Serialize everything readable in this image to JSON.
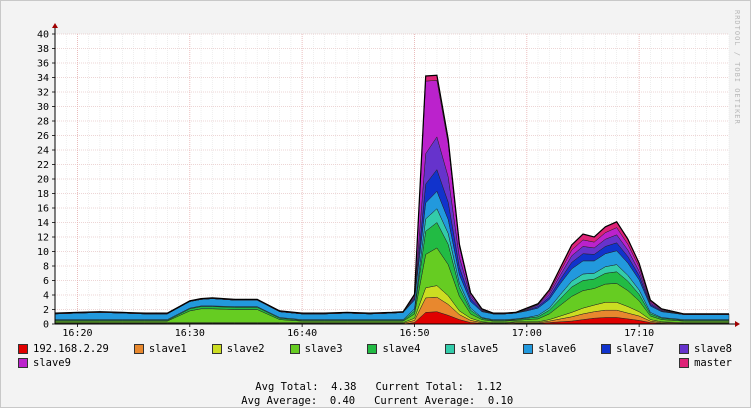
{
  "chart_data": {
    "type": "area",
    "stacked": true,
    "ylim": [
      0,
      40
    ],
    "yticks": [
      "0",
      "2",
      "4",
      "6",
      "8",
      "10",
      "12",
      "14",
      "16",
      "18",
      "20",
      "22",
      "24",
      "26",
      "28",
      "30",
      "32",
      "34",
      "36",
      "38",
      "40"
    ],
    "xticks": [
      "16:20",
      "16:30",
      "16:40",
      "16:50",
      "17:00",
      "17:10"
    ],
    "side_text": "RRDTOOL / TOBI OETIKER",
    "grid": true,
    "x": [
      "16:18",
      "16:20",
      "16:22",
      "16:24",
      "16:26",
      "16:28",
      "16:30",
      "16:31",
      "16:32",
      "16:34",
      "16:36",
      "16:38",
      "16:40",
      "16:42",
      "16:44",
      "16:46",
      "16:48",
      "16:49",
      "16:50",
      "16:51",
      "16:52",
      "16:53",
      "16:54",
      "16:55",
      "16:56",
      "16:57",
      "16:58",
      "16:59",
      "17:00",
      "17:01",
      "17:02",
      "17:03",
      "17:04",
      "17:05",
      "17:06",
      "17:07",
      "17:08",
      "17:09",
      "17:10",
      "17:11",
      "17:12",
      "17:14",
      "17:16",
      "17:18"
    ],
    "series": [
      {
        "name": "192.168.2.29",
        "color": "#e00000",
        "values": [
          0,
          0,
          0,
          0,
          0,
          0,
          0,
          0,
          0,
          0,
          0,
          0,
          0,
          0,
          0,
          0,
          0,
          0,
          0.2,
          1.6,
          1.7,
          1.2,
          0.6,
          0.2,
          0.1,
          0,
          0,
          0.1,
          0.1,
          0.1,
          0.2,
          0.3,
          0.4,
          0.6,
          0.8,
          0.9,
          0.9,
          0.7,
          0.5,
          0.2,
          0.1,
          0,
          0,
          0
        ]
      },
      {
        "name": "slave1",
        "color": "#e8882e",
        "values": [
          0.1,
          0.1,
          0.1,
          0.1,
          0.1,
          0.1,
          0.1,
          0.1,
          0.1,
          0.1,
          0.1,
          0.1,
          0.1,
          0.1,
          0.1,
          0.1,
          0.1,
          0.1,
          0.3,
          2.0,
          2.0,
          1.5,
          0.7,
          0.3,
          0.1,
          0.1,
          0.1,
          0.1,
          0.1,
          0.1,
          0.2,
          0.4,
          0.6,
          0.8,
          0.9,
          1.0,
          1.0,
          0.8,
          0.6,
          0.2,
          0.1,
          0.1,
          0.1,
          0.1
        ]
      },
      {
        "name": "slave2",
        "color": "#ccdd22",
        "values": [
          0.1,
          0.1,
          0.1,
          0.1,
          0.1,
          0.1,
          0.1,
          0.1,
          0.1,
          0.1,
          0.1,
          0.1,
          0.1,
          0.1,
          0.1,
          0.1,
          0.1,
          0.1,
          0.3,
          1.4,
          1.6,
          1.2,
          0.5,
          0.3,
          0.1,
          0.1,
          0.1,
          0.1,
          0.1,
          0.1,
          0.2,
          0.4,
          0.6,
          0.8,
          0.9,
          1.1,
          1.1,
          0.9,
          0.6,
          0.2,
          0.1,
          0.1,
          0.1,
          0.1
        ]
      },
      {
        "name": "slave3",
        "color": "#66cc22",
        "values": [
          0.2,
          0.2,
          0.2,
          0.2,
          0.2,
          0.2,
          1.6,
          1.9,
          1.9,
          1.8,
          1.8,
          0.4,
          0.2,
          0.2,
          0.2,
          0.2,
          0.2,
          0.2,
          0.6,
          4.6,
          5.2,
          4.3,
          2.0,
          0.6,
          0.3,
          0.2,
          0.2,
          0.2,
          0.3,
          0.4,
          0.8,
          1.5,
          2.2,
          2.4,
          2.3,
          2.5,
          2.6,
          2.2,
          1.5,
          0.5,
          0.3,
          0.2,
          0.2,
          0.2
        ]
      },
      {
        "name": "slave4",
        "color": "#22bb44",
        "values": [
          0.1,
          0.1,
          0.1,
          0.1,
          0.1,
          0.1,
          0.3,
          0.3,
          0.3,
          0.3,
          0.3,
          0.2,
          0.1,
          0.1,
          0.1,
          0.1,
          0.1,
          0.1,
          0.4,
          3.2,
          3.5,
          2.8,
          1.2,
          0.5,
          0.2,
          0.1,
          0.1,
          0.1,
          0.2,
          0.3,
          0.5,
          0.9,
          1.3,
          1.4,
          1.3,
          1.5,
          1.6,
          1.3,
          0.9,
          0.3,
          0.2,
          0.1,
          0.1,
          0.1
        ]
      },
      {
        "name": "slave5",
        "color": "#33ccaa",
        "values": [
          0.1,
          0.1,
          0.1,
          0.1,
          0.1,
          0.1,
          0.1,
          0.1,
          0.1,
          0.1,
          0.1,
          0.1,
          0.1,
          0.1,
          0.1,
          0.1,
          0.1,
          0.1,
          0.3,
          1.7,
          1.9,
          1.5,
          0.6,
          0.3,
          0.1,
          0.1,
          0.1,
          0.1,
          0.1,
          0.2,
          0.3,
          0.6,
          0.8,
          0.9,
          0.8,
          0.9,
          1.0,
          0.8,
          0.6,
          0.2,
          0.1,
          0.1,
          0.1,
          0.1
        ]
      },
      {
        "name": "slave6",
        "color": "#2299dd",
        "values": [
          0.8,
          0.9,
          1.0,
          0.9,
          0.8,
          0.8,
          0.9,
          0.9,
          1.0,
          0.9,
          0.9,
          0.8,
          0.8,
          0.8,
          0.9,
          0.8,
          0.9,
          1.0,
          1.2,
          2.2,
          2.4,
          1.9,
          1.2,
          0.9,
          0.8,
          0.8,
          0.8,
          0.8,
          0.9,
          1.0,
          1.2,
          1.5,
          1.7,
          1.8,
          1.7,
          1.8,
          1.9,
          1.7,
          1.4,
          0.9,
          0.8,
          0.7,
          0.7,
          0.7
        ]
      },
      {
        "name": "slave7",
        "color": "#1133cc",
        "values": [
          0,
          0,
          0,
          0,
          0,
          0,
          0,
          0,
          0,
          0,
          0,
          0,
          0,
          0,
          0,
          0,
          0,
          0,
          0.2,
          2.6,
          3.0,
          2.4,
          1.0,
          0.4,
          0.1,
          0,
          0,
          0,
          0.1,
          0.2,
          0.3,
          0.6,
          0.9,
          1.0,
          0.9,
          1.0,
          1.1,
          0.9,
          0.6,
          0.2,
          0.1,
          0,
          0,
          0
        ]
      },
      {
        "name": "slave8",
        "color": "#6633cc",
        "values": [
          0,
          0,
          0,
          0,
          0,
          0,
          0,
          0,
          0,
          0,
          0,
          0,
          0,
          0,
          0,
          0,
          0,
          0,
          0.2,
          4.2,
          4.5,
          3.5,
          1.4,
          0.4,
          0.1,
          0,
          0,
          0,
          0.1,
          0.2,
          0.4,
          0.6,
          0.9,
          1.0,
          0.9,
          1.0,
          1.1,
          0.9,
          0.6,
          0.2,
          0.1,
          0,
          0,
          0
        ]
      },
      {
        "name": "slave9",
        "color": "#bb22cc",
        "values": [
          0,
          0,
          0,
          0,
          0,
          0,
          0,
          0,
          0,
          0,
          0,
          0,
          0,
          0,
          0,
          0,
          0,
          0,
          0.2,
          10.0,
          7.8,
          4.6,
          1.5,
          0.3,
          0.1,
          0,
          0,
          0,
          0.1,
          0.1,
          0.3,
          0.5,
          0.8,
          0.9,
          0.8,
          0.9,
          1.0,
          0.8,
          0.6,
          0.2,
          0.1,
          0,
          0,
          0
        ]
      },
      {
        "name": "master",
        "color": "#dd2277",
        "values": [
          0.1,
          0.1,
          0.1,
          0.1,
          0.1,
          0.1,
          0.1,
          0.1,
          0.1,
          0.1,
          0.1,
          0.1,
          0.1,
          0.1,
          0.1,
          0.1,
          0.1,
          0.1,
          0.2,
          0.7,
          0.7,
          0.6,
          0.3,
          0.1,
          0.1,
          0.1,
          0.1,
          0.1,
          0.1,
          0.1,
          0.3,
          0.5,
          0.7,
          0.8,
          0.7,
          0.8,
          0.8,
          0.7,
          0.5,
          0.2,
          0.1,
          0.1,
          0.1,
          0.1
        ]
      }
    ]
  },
  "stats": {
    "avg_total_label": "Avg Total:",
    "avg_total_value": "4.38",
    "current_total_label": "Current Total:",
    "current_total_value": "1.12",
    "avg_average_label": "Avg Average:",
    "avg_average_value": "0.40",
    "current_average_label": "Current Average:",
    "current_average_value": "0.10"
  }
}
